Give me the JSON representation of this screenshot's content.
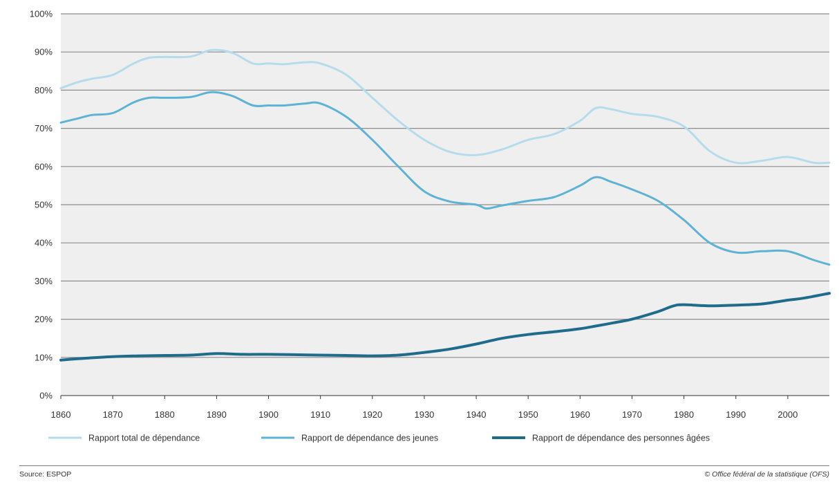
{
  "chart_data": {
    "type": "line",
    "xlim": [
      1860,
      2008
    ],
    "ylim": [
      0,
      100
    ],
    "x_ticks": [
      "1860",
      "1870",
      "1880",
      "1890",
      "1900",
      "1910",
      "1920",
      "1930",
      "1940",
      "1950",
      "1960",
      "1970",
      "1980",
      "1990",
      "2000"
    ],
    "y_ticks": [
      "0%",
      "10%",
      "20%",
      "30%",
      "40%",
      "50%",
      "60%",
      "70%",
      "80%",
      "90%",
      "100%"
    ],
    "grid": true,
    "legend_position": "bottom",
    "series": [
      {
        "name": "Rapport total de dépendance",
        "color": "#b5dcec",
        "x": [
          1860,
          1863,
          1866,
          1870,
          1874,
          1877,
          1880,
          1885,
          1889,
          1893,
          1897,
          1900,
          1903,
          1907,
          1910,
          1915,
          1920,
          1925,
          1930,
          1935,
          1940,
          1945,
          1950,
          1955,
          1960,
          1963,
          1966,
          1970,
          1975,
          1980,
          1985,
          1990,
          1995,
          2000,
          2005,
          2008
        ],
        "y": [
          80.5,
          82,
          83,
          84,
          87,
          88.5,
          88.7,
          88.8,
          90.5,
          89.8,
          87,
          87,
          86.8,
          87.3,
          87,
          84,
          78,
          72,
          67,
          63.8,
          63,
          64.5,
          67,
          68.5,
          72,
          75.3,
          75,
          73.8,
          73,
          70.5,
          64,
          61,
          61.5,
          62.5,
          61,
          61
        ]
      },
      {
        "name": "Rapport de dépendance des jeunes",
        "color": "#5db3d6",
        "x": [
          1860,
          1863,
          1866,
          1870,
          1874,
          1877,
          1880,
          1885,
          1889,
          1893,
          1897,
          1900,
          1903,
          1907,
          1910,
          1915,
          1920,
          1925,
          1930,
          1935,
          1940,
          1942,
          1945,
          1950,
          1955,
          1960,
          1963,
          1966,
          1970,
          1975,
          1980,
          1985,
          1990,
          1995,
          2000,
          2005,
          2008
        ],
        "y": [
          71.5,
          72.5,
          73.5,
          74,
          76.8,
          78,
          78,
          78.2,
          79.5,
          78.5,
          76,
          76,
          76,
          76.5,
          76.5,
          73,
          67,
          60,
          53.5,
          50.8,
          50,
          49,
          49.8,
          51,
          52,
          55,
          57.2,
          56,
          54,
          51,
          46,
          40,
          37.5,
          37.8,
          37.8,
          35.5,
          34.3
        ]
      },
      {
        "name": "Rapport de dépendance des personnes âgées",
        "color": "#1e6b8c",
        "x": [
          1860,
          1865,
          1870,
          1875,
          1880,
          1885,
          1890,
          1895,
          1900,
          1905,
          1910,
          1915,
          1920,
          1925,
          1930,
          1935,
          1940,
          1945,
          1950,
          1955,
          1960,
          1963,
          1967,
          1970,
          1975,
          1978,
          1980,
          1985,
          1990,
          1995,
          2000,
          2003,
          2008
        ],
        "y": [
          9.3,
          9.8,
          10.2,
          10.4,
          10.5,
          10.6,
          11,
          10.8,
          10.8,
          10.7,
          10.6,
          10.5,
          10.4,
          10.6,
          11.3,
          12.2,
          13.5,
          15,
          16,
          16.7,
          17.5,
          18.2,
          19.2,
          20,
          22,
          23.5,
          23.8,
          23.5,
          23.7,
          24,
          25,
          25.5,
          26.8
        ]
      }
    ]
  },
  "footer": {
    "source": "Source: ESPOP",
    "credit": "© Office fédéral de la statistique (OFS)"
  }
}
